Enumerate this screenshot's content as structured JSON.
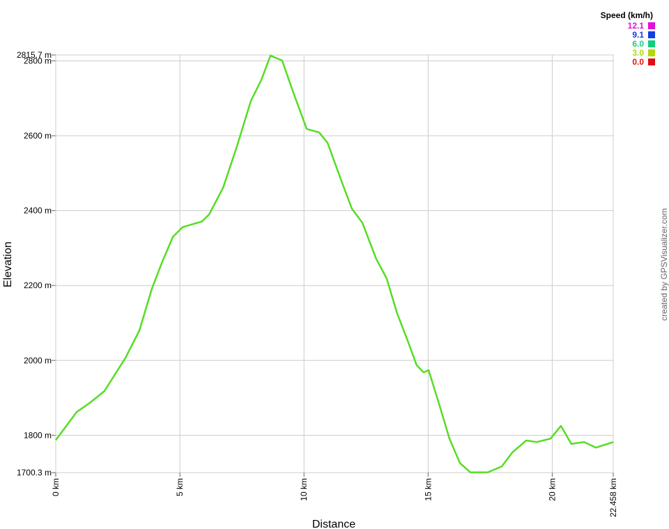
{
  "chart_data": {
    "type": "line",
    "x_label": "Distance",
    "y_label": "Elevation",
    "credit": "created by GPSVisualizer.com",
    "legend": {
      "title": "Speed (km/h)",
      "position": "top-right",
      "items": [
        {
          "value": 12.1,
          "color": "#e010e0"
        },
        {
          "value": 9.1,
          "color": "#1040e0"
        },
        {
          "value": {
            "value": 6,
            "label": "6.0"
          },
          "color": "#10d080"
        },
        {
          "value": {
            "value": 3,
            "label": "3.0"
          },
          "color": "#b0d810"
        },
        {
          "value": {
            "value": 0,
            "label": "0.0"
          },
          "color": "#e01010"
        }
      ]
    },
    "x": [
      0,
      0.84,
      1.4,
      1.96,
      2.81,
      3.37,
      3.87,
      4.27,
      4.72,
      5.11,
      5.89,
      6.18,
      6.74,
      7.3,
      7.86,
      8.28,
      8.65,
      9.12,
      9.54,
      10.11,
      10.61,
      10.95,
      11.51,
      11.93,
      12.35,
      12.91,
      13.33,
      13.75,
      14.18,
      14.54,
      14.82,
      15.02,
      15.44,
      15.86,
      16.28,
      16.7,
      17.4,
      17.97,
      18.39,
      18.95,
      19.37,
      19.93,
      20.35,
      20.77,
      21.28,
      21.76,
      22.458
    ],
    "series": [
      {
        "color": "#55dd22",
        "values": [
          1787,
          1862,
          1888,
          1918,
          2007,
          2080,
          2191,
          2260,
          2330,
          2356,
          2371,
          2390,
          2461,
          2572,
          2693,
          2749,
          2814,
          2801,
          2721,
          2618,
          2609,
          2581,
          2479,
          2405,
          2368,
          2271,
          2219,
          2126,
          2052,
          1987,
          1968,
          1974,
          1884,
          1791,
          1726,
          1701,
          1701,
          1717,
          1754,
          1786,
          1782,
          1791,
          1825,
          1777,
          1782,
          1767,
          1782
        ]
      }
    ],
    "xlim": [
      0,
      22.458
    ],
    "xticks": [
      {
        "value": 0,
        "label": "0 km"
      },
      {
        "value": 5,
        "label": "5 km"
      },
      {
        "value": 10,
        "label": "10 km"
      },
      {
        "value": 15,
        "label": "15 km"
      },
      {
        "value": 20,
        "label": "20 km"
      },
      {
        "value": 22.458,
        "label": "22.458 km"
      }
    ],
    "ylim": [
      1700.3,
      2815.7
    ],
    "yticks": [
      {
        "value": 1700.3,
        "label": "1700.3 m"
      },
      {
        "value": 1800,
        "label": "1800 m"
      },
      {
        "value": 2000,
        "label": "2000 m"
      },
      {
        "value": 2200,
        "label": "2200 m"
      },
      {
        "value": 2400,
        "label": "2400 m"
      },
      {
        "value": 2600,
        "label": "2600 m"
      },
      {
        "value": 2800,
        "label": "2800 m"
      },
      {
        "value": 2815.7,
        "label": "2815.7 m"
      }
    ],
    "grid": true
  }
}
